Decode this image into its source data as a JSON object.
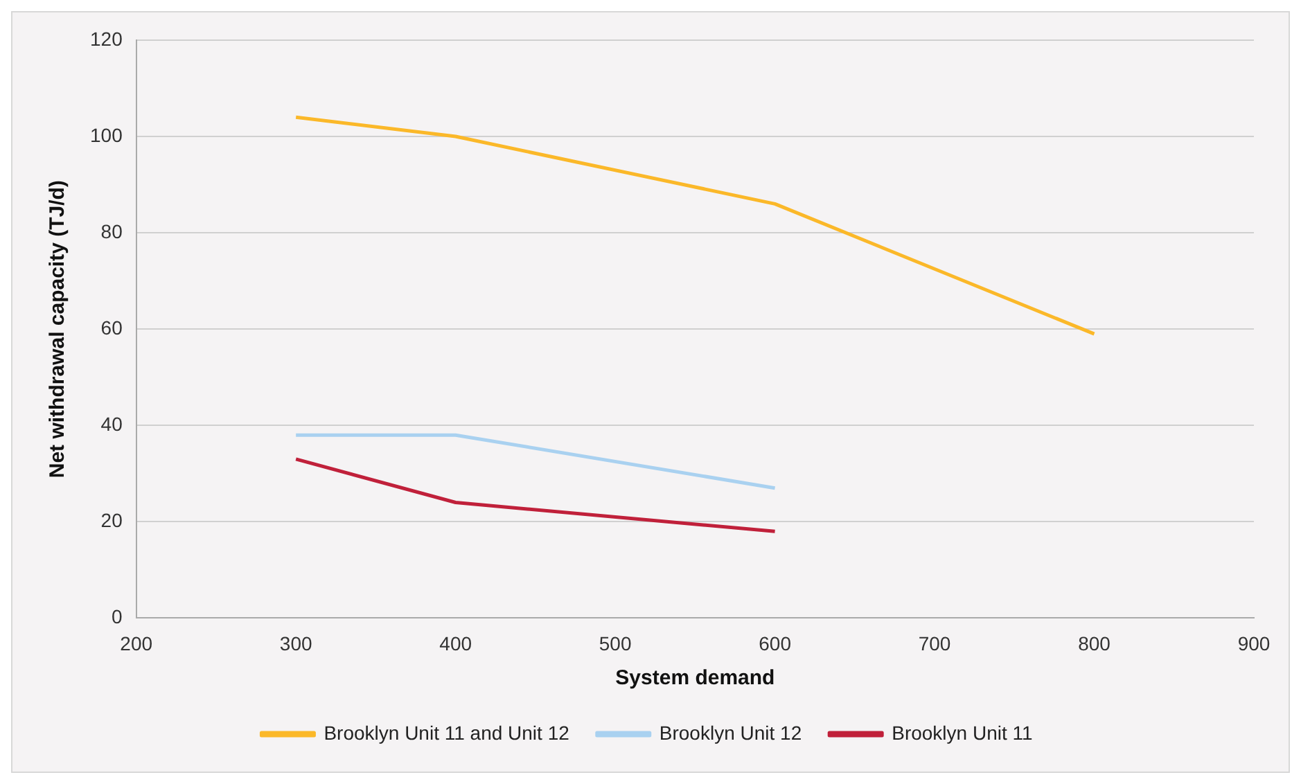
{
  "chart_data": {
    "type": "line",
    "xlabel": "System demand",
    "ylabel": "Net withdrawal capacity (TJ/d)",
    "xlim": [
      200,
      900
    ],
    "xticks": [
      200,
      300,
      400,
      500,
      600,
      700,
      800,
      900
    ],
    "ylim": [
      0,
      120
    ],
    "yticks": [
      0,
      20,
      40,
      60,
      80,
      100,
      120
    ],
    "grid": "y",
    "legend": "bottom",
    "marker": "none",
    "series": [
      {
        "name": "Brooklyn Unit 11 and Unit 12",
        "color": "#fbb829",
        "x": [
          300,
          400,
          600,
          800
        ],
        "values": [
          104,
          100,
          86,
          59
        ]
      },
      {
        "name": "Brooklyn Unit 12",
        "color": "#a9d1f0",
        "x": [
          300,
          400,
          600
        ],
        "values": [
          38,
          38,
          27
        ]
      },
      {
        "name": "Brooklyn Unit 11",
        "color": "#c0203a",
        "x": [
          300,
          400,
          600
        ],
        "values": [
          33,
          24,
          18
        ]
      }
    ]
  }
}
